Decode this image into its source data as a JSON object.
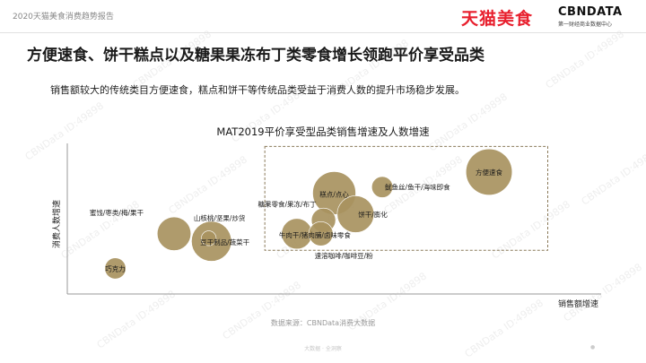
{
  "header": {
    "report_label": "2020天猫美食消费趋势报告",
    "brand_tmall": "天猫美食",
    "brand_cbn": "CBNDATA",
    "brand_cbn_sub": "第一财经商业数据中心"
  },
  "slide": {
    "title": "方便速食、饼干糕点以及糖果果冻布丁类零食增长领跑平价享受品类",
    "subtitle": "销售额较大的传统类目方便速食，糕点和饼干等传统品类受益于消费人数的提升市场稳步发展。"
  },
  "watermark_text": "CBNData ID:49898",
  "source": "数据来源：CBNData消费大数据",
  "footer_id": "大数据 · 全洞察",
  "page_mark": "●",
  "colors": {
    "bubble": "#a8925f",
    "axis": "#9a9a9a",
    "highlight_box": "#8a7a5a",
    "tmall_red": "#e8202e"
  },
  "chart_data": {
    "type": "scatter",
    "title": "MAT2019平价享受型品类销售增速及人数增速",
    "xlabel": "销售额增速",
    "ylabel": "消费人数增速",
    "xlim": [
      0,
      100
    ],
    "ylim": [
      0,
      100
    ],
    "grid": false,
    "axis_ticks": false,
    "highlight_region": {
      "x": [
        37,
        90
      ],
      "y": [
        29,
        98
      ]
    },
    "points": [
      {
        "label": "方便速食",
        "x": 79,
        "y": 81,
        "size": 13
      },
      {
        "label": "鱿鱼丝/鱼干/海味即食",
        "x": 59,
        "y": 71,
        "size": 5
      },
      {
        "label": "糕点/点心",
        "x": 50,
        "y": 67,
        "size": 12
      },
      {
        "label": "饼干/膨化",
        "x": 54,
        "y": 53,
        "size": 10
      },
      {
        "label": "糖果零食/果冻/布丁",
        "x": 48,
        "y": 49,
        "size": 6
      },
      {
        "label": "牛肉干/猪肉脯/卤味零食",
        "x": 43,
        "y": 40,
        "size": 8
      },
      {
        "label": "速溶咖啡/咖啡豆/粉",
        "x": 47.5,
        "y": 40,
        "size": 6
      },
      {
        "label": "豆干制品/蔬菜干",
        "x": 27,
        "y": 35,
        "size": 11
      },
      {
        "label": "山核桃/坚果/炒货",
        "x": 26.5,
        "y": 37,
        "size": 3
      },
      {
        "label": "蜜饯/枣类/梅/果干",
        "x": 20,
        "y": 40,
        "size": 9
      },
      {
        "label": "巧克力",
        "x": 9,
        "y": 17,
        "size": 5
      }
    ]
  }
}
